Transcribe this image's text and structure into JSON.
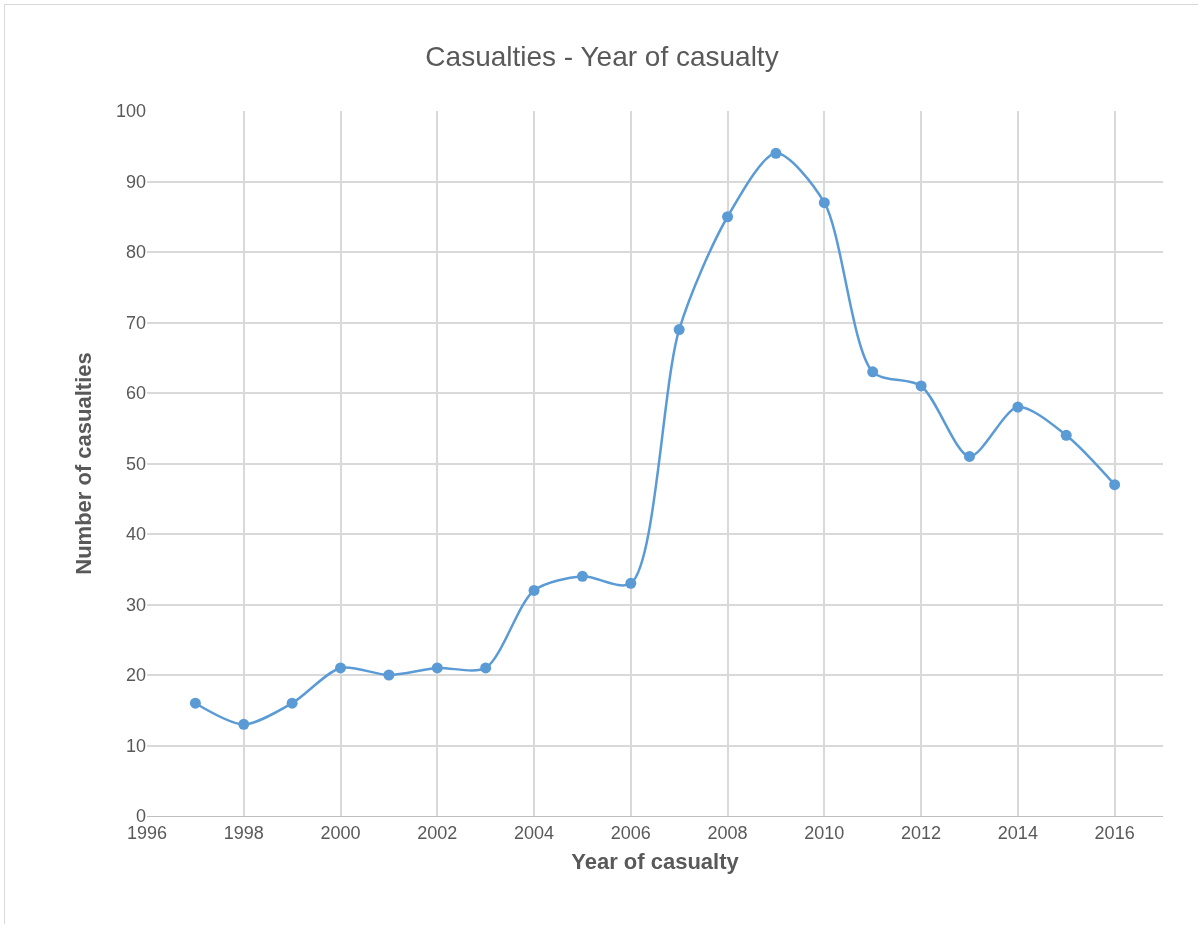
{
  "chart_data": {
    "type": "line",
    "title": "Casualties - Year of casualty",
    "xlabel": "Year of casualty",
    "ylabel": "Number of casualties",
    "x": [
      1997,
      1998,
      1999,
      2000,
      2001,
      2002,
      2003,
      2004,
      2005,
      2006,
      2007,
      2008,
      2009,
      2010,
      2011,
      2012,
      2013,
      2014,
      2015,
      2016
    ],
    "series": [
      {
        "color": "#5b9bd5",
        "values": [
          16,
          13,
          16,
          21,
          20,
          21,
          21,
          32,
          34,
          33,
          69,
          85,
          94,
          87,
          63,
          61,
          51,
          58,
          54,
          47
        ]
      }
    ],
    "xlim": [
      1996,
      2017
    ],
    "xticks": [
      1996,
      1998,
      2000,
      2002,
      2004,
      2006,
      2008,
      2010,
      2012,
      2014,
      2016
    ],
    "ylim": [
      0,
      100
    ],
    "yticks": [
      0,
      10,
      20,
      30,
      40,
      50,
      60,
      70,
      80,
      90,
      100
    ],
    "grid": true,
    "marker": "circle",
    "line_style": "solid"
  }
}
